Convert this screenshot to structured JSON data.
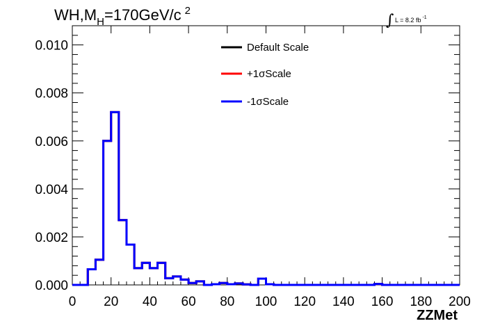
{
  "chart_data": {
    "type": "line",
    "title_parts": {
      "main": "WH,M",
      "sub": "H",
      "rest": "=170GeV/c",
      "sup": "2"
    },
    "luminosity": {
      "symbol": "∫",
      "text": "L = 8.2 fb",
      "sup": "-1"
    },
    "xlabel": "ZZMet",
    "ylabel": "",
    "xlim": [
      0,
      200
    ],
    "ylim": [
      0,
      0.0108
    ],
    "x_ticks": [
      0,
      20,
      40,
      60,
      80,
      100,
      120,
      140,
      160,
      180,
      200
    ],
    "x_tick_labels": [
      "0",
      "20",
      "40",
      "60",
      "80",
      "100",
      "120",
      "140",
      "160",
      "180",
      "200"
    ],
    "y_ticks": [
      0,
      0.002,
      0.004,
      0.006,
      0.008,
      0.01
    ],
    "y_tick_labels": [
      "0.000",
      "0.002",
      "0.004",
      "0.006",
      "0.008",
      "0.010"
    ],
    "grid": false,
    "legend_placement": "top-center",
    "bin_edges": [
      0,
      4,
      8,
      12,
      16,
      20,
      24,
      28,
      32,
      36,
      40,
      44,
      48,
      52,
      56,
      60,
      64,
      68,
      72,
      76,
      80,
      84,
      88,
      92,
      96,
      100,
      104,
      108,
      112,
      116,
      120,
      124,
      128,
      132,
      136,
      140,
      144,
      148,
      152,
      156,
      160,
      164,
      168,
      172,
      176,
      180,
      184,
      188,
      192,
      196,
      200
    ],
    "series": [
      {
        "name": "Default Scale",
        "color": "#000000",
        "values": [
          0,
          0,
          0.00065,
          0.00105,
          0.006,
          0.0072,
          0.0027,
          0.00168,
          0.0007,
          0.00092,
          0.0007,
          0.00092,
          0.00028,
          0.00035,
          0.00022,
          8e-05,
          0.00015,
          0,
          3e-05,
          8e-05,
          3e-05,
          6e-05,
          2e-05,
          0,
          0.00026,
          3e-05,
          0,
          0,
          0,
          0,
          0,
          0,
          0,
          0,
          0,
          0,
          0,
          0,
          0,
          4e-05,
          0,
          0,
          0,
          0,
          0,
          0,
          0,
          0,
          0,
          0
        ]
      },
      {
        "name": "+1σScale",
        "color": "#ff0000",
        "values": [
          0,
          0,
          0.00065,
          0.00105,
          0.006,
          0.0072,
          0.0027,
          0.00168,
          0.0007,
          0.00092,
          0.0007,
          0.00092,
          0.00028,
          0.00035,
          0.00022,
          8e-05,
          0.00015,
          0,
          3e-05,
          8e-05,
          3e-05,
          6e-05,
          2e-05,
          0,
          0.00026,
          3e-05,
          0,
          0,
          0,
          0,
          0,
          0,
          0,
          0,
          0,
          0,
          0,
          0,
          0,
          4e-05,
          0,
          0,
          0,
          0,
          0,
          0,
          0,
          0,
          0,
          0
        ]
      },
      {
        "name": "-1σScale",
        "color": "#0000ff",
        "values": [
          0,
          0,
          0.00065,
          0.00105,
          0.006,
          0.0072,
          0.0027,
          0.00168,
          0.0007,
          0.00092,
          0.0007,
          0.00092,
          0.00028,
          0.00035,
          0.00022,
          8e-05,
          0.00015,
          0,
          3e-05,
          8e-05,
          3e-05,
          6e-05,
          2e-05,
          0,
          0.00026,
          3e-05,
          0,
          0,
          0,
          0,
          0,
          0,
          0,
          0,
          0,
          0,
          0,
          0,
          0,
          4e-05,
          0,
          0,
          0,
          0,
          0,
          0,
          0,
          0,
          0,
          0
        ]
      }
    ]
  }
}
